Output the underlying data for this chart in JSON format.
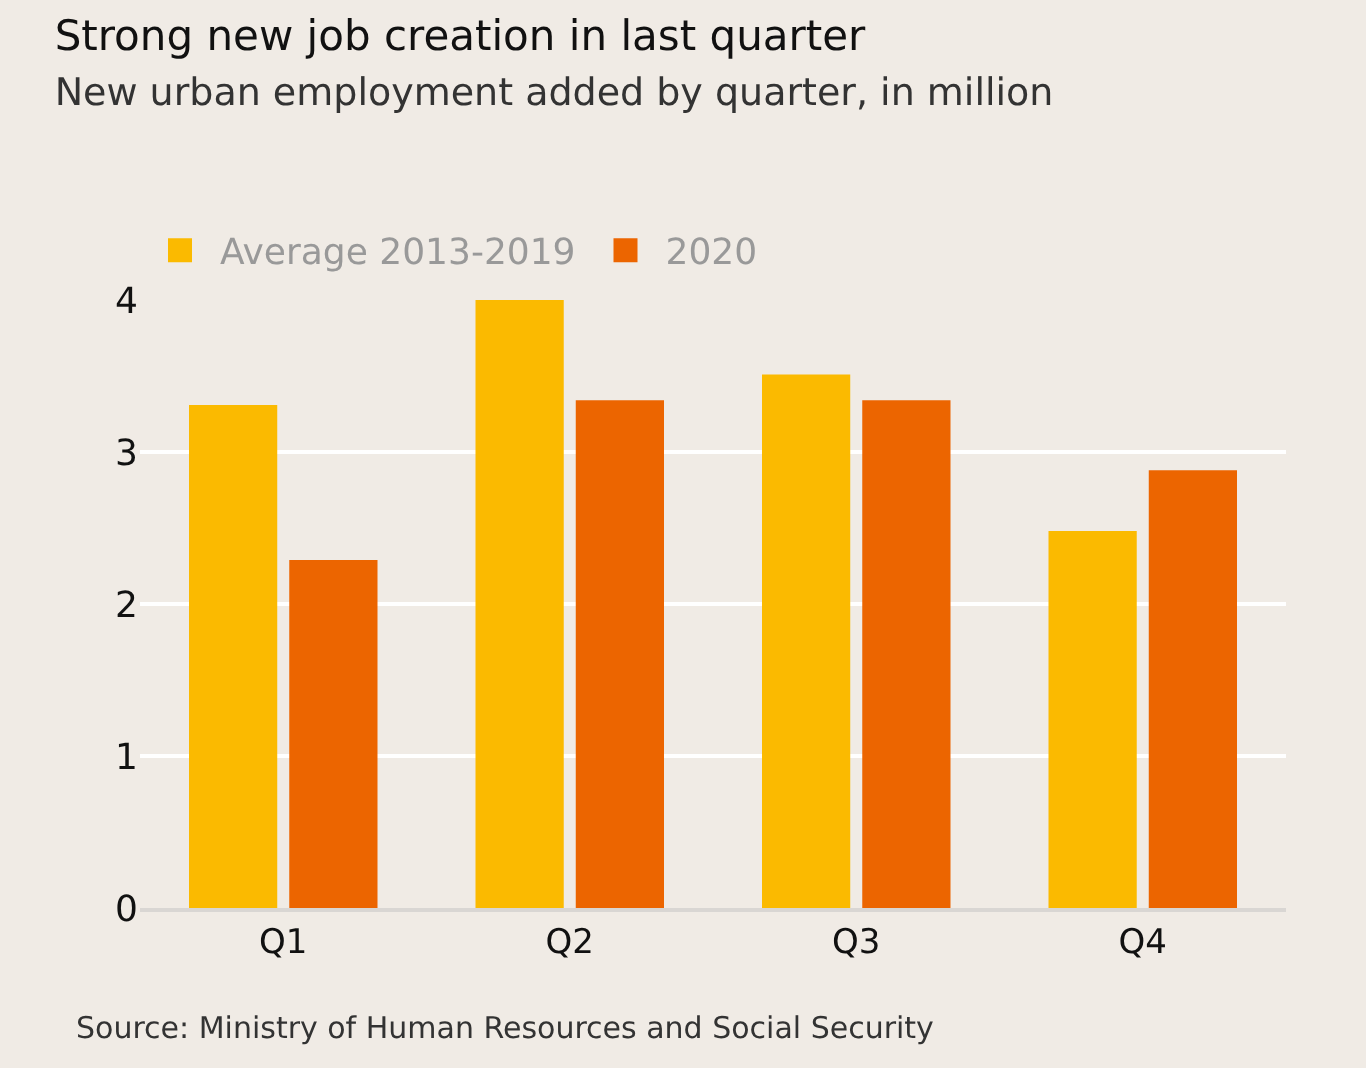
{
  "chart_data": {
    "type": "bar",
    "title": "Strong new job creation in last quarter",
    "subtitle": "New urban employment added by quarter, in million",
    "categories": [
      "Q1",
      "Q2",
      "Q3",
      "Q4"
    ],
    "series": [
      {
        "name": "Average 2013-2019",
        "color": "#fbba00",
        "values": [
          3.31,
          4.0,
          3.51,
          2.48
        ]
      },
      {
        "name": "2020",
        "color": "#ec6500",
        "values": [
          2.29,
          3.34,
          3.34,
          2.88
        ]
      }
    ],
    "ylim": [
      0,
      4
    ],
    "yticks": [
      0,
      1,
      2,
      3,
      4
    ],
    "grid": "y",
    "legend": "top left",
    "annotations": [
      "Source: Ministry of Human Resources and Social Security"
    ]
  }
}
